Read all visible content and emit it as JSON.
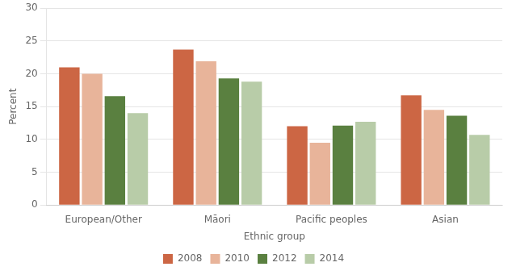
{
  "chart_data": {
    "type": "bar",
    "categories": [
      "European/Other",
      "Māori",
      "Pacific peoples",
      "Asian"
    ],
    "series": [
      {
        "name": "2008",
        "color": "#cc6644",
        "values": [
          21.0,
          23.7,
          12.0,
          16.7
        ]
      },
      {
        "name": "2010",
        "color": "#e8b49a",
        "values": [
          20.0,
          21.9,
          9.5,
          14.5
        ]
      },
      {
        "name": "2012",
        "color": "#5a8040",
        "values": [
          16.6,
          19.3,
          12.1,
          13.6
        ]
      },
      {
        "name": "2014",
        "color": "#b8cca8",
        "values": [
          14.0,
          18.8,
          12.7,
          10.7
        ]
      }
    ],
    "xlabel": "Ethnic group",
    "ylabel": "Percent",
    "ylim": [
      0,
      30
    ],
    "yticks": [
      0,
      5,
      10,
      15,
      20,
      25,
      30
    ],
    "grid": true,
    "legend": "bottom"
  }
}
